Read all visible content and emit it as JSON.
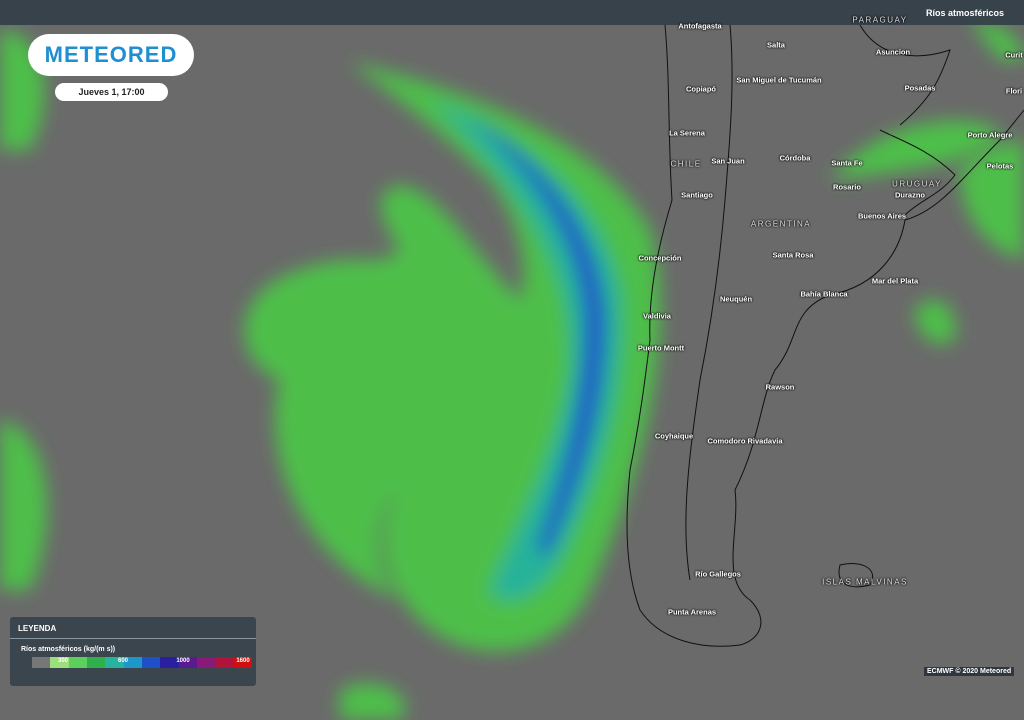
{
  "header": {
    "logo": "METEORED",
    "date": "Jueves 1, 17:00",
    "layer": "Ríos atmosféricos"
  },
  "map": {
    "labels": [
      "Antofagasta",
      "Salta",
      "Asuncion",
      "Copiapó",
      "San Miguel de Tucumán",
      "Posadas",
      "La Serena",
      "Porto Alegre",
      "CHILE",
      "San Juan",
      "Córdoba",
      "Santa Fe",
      "Pelotas",
      "Santiago",
      "Rosario",
      "URUGUAY",
      "Durazno",
      "Buenos Aires",
      "ARGENTINA",
      "Concepción",
      "Santa Rosa",
      "Mar del Plata",
      "Neuquén",
      "Bahía Blanca",
      "Valdivia",
      "Puerto Montt",
      "Rawson",
      "Coyhaique",
      "Comodoro Rivadavia",
      "Río Gallegos",
      "ISLAS MALVINAS",
      "Punta Arenas",
      "PARAGUAY",
      "Curit",
      "Flori"
    ]
  },
  "legend": {
    "title": "LEYENDA",
    "subtitle": "Ríos atmosféricos (kg/(m s))",
    "ticks": [
      300,
      600,
      1000,
      1600
    ]
  },
  "footer": {
    "credit": "ECMWF © 2020 Meteored"
  }
}
